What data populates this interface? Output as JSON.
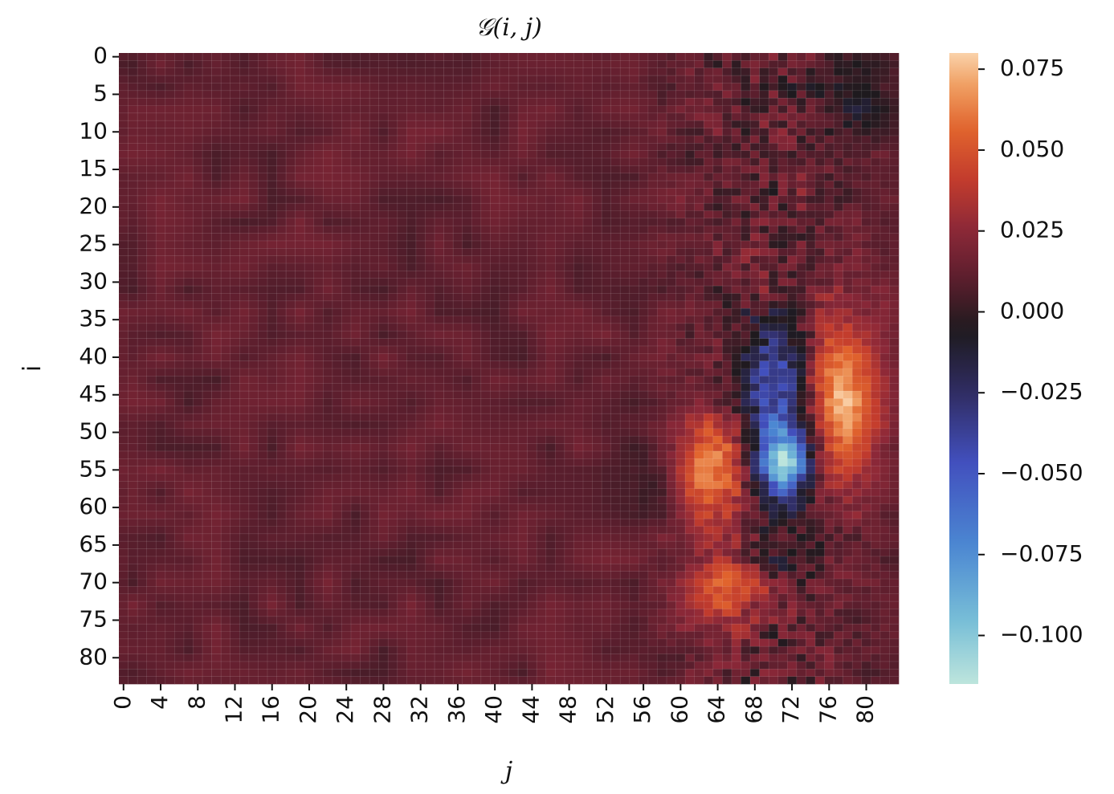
{
  "chart_data": {
    "type": "heatmap",
    "title": "𝒢(i, j)",
    "xlabel": "j",
    "ylabel": "i",
    "rows": 84,
    "cols": 84,
    "x_ticks": [
      0,
      4,
      8,
      12,
      16,
      20,
      24,
      28,
      32,
      36,
      40,
      44,
      48,
      52,
      56,
      60,
      64,
      68,
      72,
      76,
      80
    ],
    "y_ticks": [
      0,
      5,
      10,
      15,
      20,
      25,
      30,
      35,
      40,
      45,
      50,
      55,
      60,
      65,
      70,
      75,
      80
    ],
    "colorbar": {
      "min": -0.115,
      "max": 0.08,
      "colormap": "icefire",
      "ticks": [
        "0.075",
        "0.050",
        "0.025",
        "0.000",
        "−0.025",
        "−0.050",
        "−0.075",
        "−0.100"
      ],
      "tick_values": [
        0.075,
        0.05,
        0.025,
        0.0,
        -0.025,
        -0.05,
        -0.075,
        -0.1
      ]
    },
    "background_value": 0.012,
    "features": [
      {
        "name": "negative-core-upper",
        "i_center": 44,
        "j_center": 70,
        "i_sigma": 5.5,
        "j_sigma": 2.6,
        "value": -0.06
      },
      {
        "name": "negative-core-lower",
        "i_center": 54,
        "j_center": 71,
        "i_sigma": 3.2,
        "j_sigma": 2.0,
        "value": -0.11
      },
      {
        "name": "positive-lobe-right",
        "i_center": 46,
        "j_center": 77.5,
        "i_sigma": 8,
        "j_sigma": 2.6,
        "value": 0.062
      },
      {
        "name": "positive-lobe-left",
        "i_center": 55,
        "j_center": 63.5,
        "i_sigma": 5,
        "j_sigma": 2.6,
        "value": 0.055
      },
      {
        "name": "positive-lobe-bottom",
        "i_center": 71,
        "j_center": 65,
        "i_sigma": 3.5,
        "j_sigma": 3.0,
        "value": 0.04
      },
      {
        "name": "dark-band-top-right",
        "i_center": 6,
        "j_center": 79,
        "i_sigma": 4,
        "j_sigma": 3,
        "value": -0.02
      },
      {
        "name": "dark-band-mid",
        "i_center": 57,
        "j_center": 56,
        "i_sigma": 4,
        "j_sigma": 2.5,
        "value": -0.012
      },
      {
        "name": "dark-band-lower",
        "i_center": 66,
        "j_center": 72,
        "i_sigma": 4,
        "j_sigma": 3,
        "value": -0.02
      },
      {
        "name": "dark-spot-left",
        "i_center": 39,
        "j_center": 7,
        "i_sigma": 2,
        "j_sigma": 1.5,
        "value": -0.004
      }
    ]
  }
}
